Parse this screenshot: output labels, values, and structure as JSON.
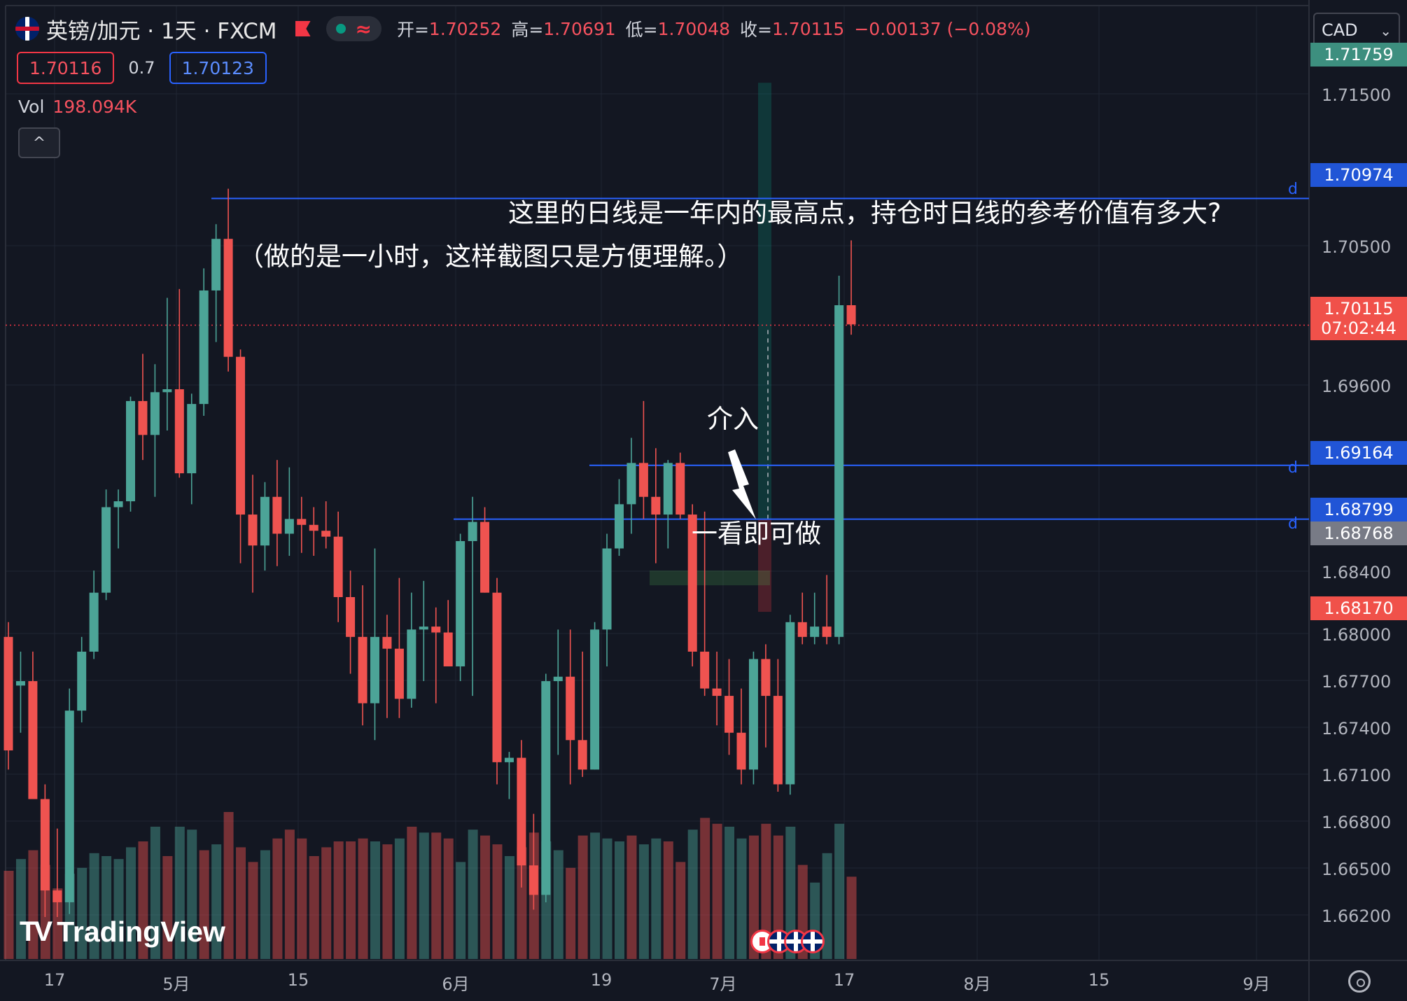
{
  "header": {
    "symbol": "英镑/加元 · 1天 · FXCM",
    "status_icon": "wave-icon",
    "wave_glyph": "≈",
    "ohlc": [
      {
        "label": "开=",
        "value": "1.70252"
      },
      {
        "label": "高=",
        "value": "1.70691"
      },
      {
        "label": "低=",
        "value": "1.70048"
      },
      {
        "label": "收=",
        "value": "1.70115"
      }
    ],
    "change": "−0.00137 (−0.08%)",
    "bid": "1.70116",
    "spread": "0.7",
    "ask": "1.70123",
    "volume_label": "Vol",
    "volume_value": "198.094K",
    "collapse_glyph": "^"
  },
  "currency_selector": {
    "value": "CAD",
    "chevron": "⌄"
  },
  "annotations": {
    "question": "这里的日线是一年内的最高点，持仓时日线的参考价值有多大?",
    "note": "（做的是一小时，这样截图只是方便理解。）",
    "entry": "介入",
    "entry_note": "一看即可做"
  },
  "price_axis": {
    "ticks": [
      "1.71500",
      "1.70500",
      "1.69600",
      "1.68400",
      "1.68000",
      "1.67700",
      "1.67400",
      "1.67100",
      "1.66800",
      "1.66500",
      "1.66200"
    ],
    "labels": [
      {
        "value": "1.71759",
        "style": "teal"
      },
      {
        "value": "1.70974",
        "style": "blue"
      },
      {
        "value": "1.70115",
        "sub": "07:02:44",
        "style": "red"
      },
      {
        "value": "1.69164",
        "style": "blue"
      },
      {
        "value": "1.68799",
        "style": "blue"
      },
      {
        "value": "1.68768",
        "style": "gray"
      },
      {
        "value": "1.68170",
        "style": "red"
      }
    ],
    "line_mark": "d"
  },
  "time_axis": [
    "17",
    "5月",
    "15",
    "6月",
    "19",
    "7月",
    "17",
    "8月",
    "15",
    "9月"
  ],
  "branding": {
    "text": "TradingView",
    "mark": "TV"
  },
  "colors": {
    "up": "#4ca497",
    "down": "#ef5350",
    "background": "#131722",
    "hline": "#2962ff",
    "grid": "#1f2433"
  },
  "chart_data": {
    "type": "candlestick",
    "symbol": "英镑/加元",
    "interval": "1天",
    "ylim": [
      1.661,
      1.7195
    ],
    "horizontal_lines": [
      1.70974,
      1.69164,
      1.68799
    ],
    "last_price": 1.70115,
    "position": {
      "entry": 1.688,
      "take_profit": 1.71759,
      "stop_loss": 1.6817
    },
    "candles": [
      {
        "o": 1.68,
        "h": 1.681,
        "l": 1.671,
        "c": 1.6723
      },
      {
        "o": 1.6767,
        "h": 1.679,
        "l": 1.6735,
        "c": 1.677
      },
      {
        "o": 1.677,
        "h": 1.679,
        "l": 1.669,
        "c": 1.669
      },
      {
        "o": 1.669,
        "h": 1.67,
        "l": 1.661,
        "c": 1.6628
      },
      {
        "o": 1.6628,
        "h": 1.667,
        "l": 1.661,
        "c": 1.662
      },
      {
        "o": 1.662,
        "h": 1.6765,
        "l": 1.6612,
        "c": 1.675
      },
      {
        "o": 1.675,
        "h": 1.68,
        "l": 1.6742,
        "c": 1.679
      },
      {
        "o": 1.679,
        "h": 1.6845,
        "l": 1.6785,
        "c": 1.683
      },
      {
        "o": 1.683,
        "h": 1.69,
        "l": 1.6825,
        "c": 1.6888
      },
      {
        "o": 1.6888,
        "h": 1.69,
        "l": 1.686,
        "c": 1.6892
      },
      {
        "o": 1.6892,
        "h": 1.6963,
        "l": 1.6885,
        "c": 1.696
      },
      {
        "o": 1.696,
        "h": 1.6992,
        "l": 1.692,
        "c": 1.6937
      },
      {
        "o": 1.6937,
        "h": 1.6985,
        "l": 1.6895,
        "c": 1.6966
      },
      {
        "o": 1.6966,
        "h": 1.703,
        "l": 1.694,
        "c": 1.6968
      },
      {
        "o": 1.6968,
        "h": 1.7036,
        "l": 1.6908,
        "c": 1.6911
      },
      {
        "o": 1.6911,
        "h": 1.6965,
        "l": 1.689,
        "c": 1.6958
      },
      {
        "o": 1.6958,
        "h": 1.705,
        "l": 1.695,
        "c": 1.7035
      },
      {
        "o": 1.7035,
        "h": 1.708,
        "l": 1.7,
        "c": 1.707
      },
      {
        "o": 1.707,
        "h": 1.7104,
        "l": 1.698,
        "c": 1.699
      },
      {
        "o": 1.699,
        "h": 1.6995,
        "l": 1.685,
        "c": 1.6883
      },
      {
        "o": 1.6883,
        "h": 1.691,
        "l": 1.683,
        "c": 1.6862
      },
      {
        "o": 1.6862,
        "h": 1.6905,
        "l": 1.6845,
        "c": 1.6895
      },
      {
        "o": 1.6895,
        "h": 1.692,
        "l": 1.6848,
        "c": 1.687
      },
      {
        "o": 1.687,
        "h": 1.6915,
        "l": 1.6855,
        "c": 1.688
      },
      {
        "o": 1.688,
        "h": 1.6895,
        "l": 1.6857,
        "c": 1.6876
      },
      {
        "o": 1.6876,
        "h": 1.6888,
        "l": 1.6855,
        "c": 1.6872
      },
      {
        "o": 1.6872,
        "h": 1.6892,
        "l": 1.686,
        "c": 1.6868
      },
      {
        "o": 1.6868,
        "h": 1.6885,
        "l": 1.681,
        "c": 1.6827
      },
      {
        "o": 1.6827,
        "h": 1.6845,
        "l": 1.6775,
        "c": 1.68
      },
      {
        "o": 1.68,
        "h": 1.6835,
        "l": 1.674,
        "c": 1.6755
      },
      {
        "o": 1.6755,
        "h": 1.686,
        "l": 1.673,
        "c": 1.68
      },
      {
        "o": 1.68,
        "h": 1.6815,
        "l": 1.6745,
        "c": 1.6792
      },
      {
        "o": 1.6792,
        "h": 1.684,
        "l": 1.6745,
        "c": 1.6758
      },
      {
        "o": 1.6758,
        "h": 1.683,
        "l": 1.6752,
        "c": 1.6805
      },
      {
        "o": 1.6805,
        "h": 1.6838,
        "l": 1.677,
        "c": 1.6807
      },
      {
        "o": 1.6807,
        "h": 1.682,
        "l": 1.6755,
        "c": 1.6803
      },
      {
        "o": 1.6803,
        "h": 1.6825,
        "l": 1.678,
        "c": 1.678
      },
      {
        "o": 1.678,
        "h": 1.687,
        "l": 1.677,
        "c": 1.6865
      },
      {
        "o": 1.6865,
        "h": 1.6895,
        "l": 1.676,
        "c": 1.6878
      },
      {
        "o": 1.6878,
        "h": 1.6888,
        "l": 1.683,
        "c": 1.683
      },
      {
        "o": 1.683,
        "h": 1.684,
        "l": 1.67,
        "c": 1.6715
      },
      {
        "o": 1.6715,
        "h": 1.6722,
        "l": 1.669,
        "c": 1.6718
      },
      {
        "o": 1.6718,
        "h": 1.673,
        "l": 1.663,
        "c": 1.6645
      },
      {
        "o": 1.6645,
        "h": 1.668,
        "l": 1.6615,
        "c": 1.6625
      },
      {
        "o": 1.6625,
        "h": 1.6775,
        "l": 1.662,
        "c": 1.677
      },
      {
        "o": 1.677,
        "h": 1.6805,
        "l": 1.672,
        "c": 1.6773
      },
      {
        "o": 1.6773,
        "h": 1.6805,
        "l": 1.67,
        "c": 1.673
      },
      {
        "o": 1.673,
        "h": 1.679,
        "l": 1.6705,
        "c": 1.671
      },
      {
        "o": 1.671,
        "h": 1.681,
        "l": 1.671,
        "c": 1.6805
      },
      {
        "o": 1.6805,
        "h": 1.687,
        "l": 1.678,
        "c": 1.686
      },
      {
        "o": 1.686,
        "h": 1.6907,
        "l": 1.6855,
        "c": 1.689
      },
      {
        "o": 1.689,
        "h": 1.6935,
        "l": 1.687,
        "c": 1.6918
      },
      {
        "o": 1.6918,
        "h": 1.696,
        "l": 1.688,
        "c": 1.6895
      },
      {
        "o": 1.6895,
        "h": 1.6928,
        "l": 1.685,
        "c": 1.6883
      },
      {
        "o": 1.6883,
        "h": 1.692,
        "l": 1.686,
        "c": 1.6918
      },
      {
        "o": 1.6918,
        "h": 1.6925,
        "l": 1.688,
        "c": 1.6883
      },
      {
        "o": 1.6883,
        "h": 1.689,
        "l": 1.678,
        "c": 1.679
      },
      {
        "o": 1.679,
        "h": 1.6885,
        "l": 1.676,
        "c": 1.6765
      },
      {
        "o": 1.6765,
        "h": 1.679,
        "l": 1.674,
        "c": 1.676
      },
      {
        "o": 1.676,
        "h": 1.6785,
        "l": 1.672,
        "c": 1.6735
      },
      {
        "o": 1.6735,
        "h": 1.6765,
        "l": 1.67,
        "c": 1.671
      },
      {
        "o": 1.671,
        "h": 1.679,
        "l": 1.67,
        "c": 1.6785
      },
      {
        "o": 1.6785,
        "h": 1.6795,
        "l": 1.6725,
        "c": 1.676
      },
      {
        "o": 1.676,
        "h": 1.6785,
        "l": 1.6695,
        "c": 1.67
      },
      {
        "o": 1.67,
        "h": 1.6815,
        "l": 1.6693,
        "c": 1.681
      },
      {
        "o": 1.681,
        "h": 1.683,
        "l": 1.6795,
        "c": 1.68
      },
      {
        "o": 1.68,
        "h": 1.683,
        "l": 1.6795,
        "c": 1.6807
      },
      {
        "o": 1.6807,
        "h": 1.6842,
        "l": 1.6795,
        "c": 1.68
      },
      {
        "o": 1.68,
        "h": 1.7045,
        "l": 1.6795,
        "c": 1.7025
      },
      {
        "o": 1.7025,
        "h": 1.7069,
        "l": 1.7005,
        "c": 1.7012
      }
    ],
    "volume": [
      {
        "v": 30,
        "d": 1
      },
      {
        "v": 34,
        "d": 0
      },
      {
        "v": 37,
        "d": 1
      },
      {
        "v": 32,
        "d": 1
      },
      {
        "v": 24,
        "d": 1
      },
      {
        "v": 29,
        "d": 0
      },
      {
        "v": 31,
        "d": 0
      },
      {
        "v": 36,
        "d": 0
      },
      {
        "v": 35,
        "d": 0
      },
      {
        "v": 34,
        "d": 0
      },
      {
        "v": 38,
        "d": 0
      },
      {
        "v": 40,
        "d": 1
      },
      {
        "v": 45,
        "d": 0
      },
      {
        "v": 35,
        "d": 1
      },
      {
        "v": 45,
        "d": 0
      },
      {
        "v": 44,
        "d": 0
      },
      {
        "v": 37,
        "d": 1
      },
      {
        "v": 39,
        "d": 0
      },
      {
        "v": 50,
        "d": 1
      },
      {
        "v": 38,
        "d": 1
      },
      {
        "v": 33,
        "d": 1
      },
      {
        "v": 37,
        "d": 0
      },
      {
        "v": 41,
        "d": 1
      },
      {
        "v": 44,
        "d": 1
      },
      {
        "v": 41,
        "d": 1
      },
      {
        "v": 35,
        "d": 1
      },
      {
        "v": 38,
        "d": 1
      },
      {
        "v": 40,
        "d": 1
      },
      {
        "v": 40,
        "d": 1
      },
      {
        "v": 41,
        "d": 1
      },
      {
        "v": 40,
        "d": 0
      },
      {
        "v": 39,
        "d": 1
      },
      {
        "v": 41,
        "d": 0
      },
      {
        "v": 45,
        "d": 1
      },
      {
        "v": 43,
        "d": 0
      },
      {
        "v": 43,
        "d": 1
      },
      {
        "v": 41,
        "d": 1
      },
      {
        "v": 33,
        "d": 0
      },
      {
        "v": 44,
        "d": 0
      },
      {
        "v": 42,
        "d": 1
      },
      {
        "v": 39,
        "d": 1
      },
      {
        "v": 35,
        "d": 0
      },
      {
        "v": 38,
        "d": 1
      },
      {
        "v": 43,
        "d": 1
      },
      {
        "v": 40,
        "d": 0
      },
      {
        "v": 37,
        "d": 0
      },
      {
        "v": 31,
        "d": 1
      },
      {
        "v": 42,
        "d": 1
      },
      {
        "v": 43,
        "d": 0
      },
      {
        "v": 41,
        "d": 0
      },
      {
        "v": 40,
        "d": 0
      },
      {
        "v": 42,
        "d": 1
      },
      {
        "v": 39,
        "d": 0
      },
      {
        "v": 41,
        "d": 0
      },
      {
        "v": 40,
        "d": 1
      },
      {
        "v": 33,
        "d": 1
      },
      {
        "v": 44,
        "d": 0
      },
      {
        "v": 48,
        "d": 1
      },
      {
        "v": 46,
        "d": 1
      },
      {
        "v": 45,
        "d": 0
      },
      {
        "v": 41,
        "d": 0
      },
      {
        "v": 42,
        "d": 1
      },
      {
        "v": 46,
        "d": 1
      },
      {
        "v": 42,
        "d": 1
      },
      {
        "v": 45,
        "d": 0
      },
      {
        "v": 32,
        "d": 1
      },
      {
        "v": 26,
        "d": 0
      },
      {
        "v": 36,
        "d": 0
      },
      {
        "v": 46,
        "d": 0
      },
      {
        "v": 28,
        "d": 1
      }
    ]
  }
}
